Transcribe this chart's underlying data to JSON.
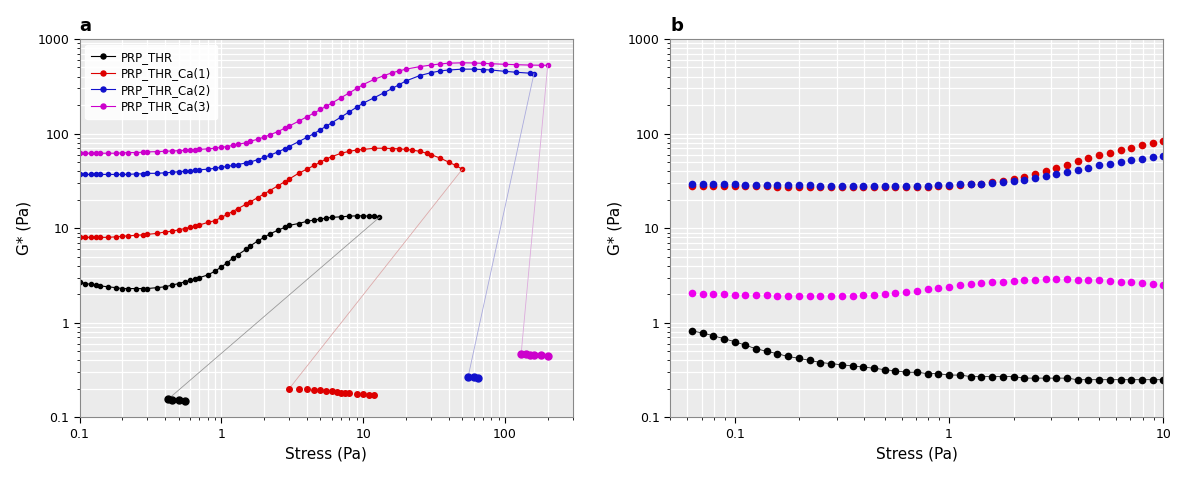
{
  "panel_a": {
    "title": "a",
    "xlabel": "Stress (Pa)",
    "ylabel": "G* (Pa)",
    "xlim": [
      0.1,
      300
    ],
    "ylim": [
      0.1,
      1000
    ],
    "legend_labels": [
      "PRP_THR",
      "PRP_THR_Ca(1)",
      "PRP_THR_Ca(2)",
      "PRP_THR_Ca(3)"
    ],
    "colors": [
      "black",
      "#dd0000",
      "#1111cc",
      "#cc00cc"
    ],
    "line_colors": [
      "#aaaaaa",
      "#ddaaaa",
      "#aaaadd",
      "#ddaadd"
    ],
    "series": {
      "PRP_THR_main": {
        "x": [
          0.1,
          0.11,
          0.12,
          0.13,
          0.14,
          0.16,
          0.18,
          0.2,
          0.22,
          0.25,
          0.28,
          0.3,
          0.35,
          0.4,
          0.45,
          0.5,
          0.55,
          0.6,
          0.65,
          0.7,
          0.8,
          0.9,
          1.0,
          1.1,
          1.2,
          1.3,
          1.5,
          1.6,
          1.8,
          2.0,
          2.2,
          2.5,
          2.8,
          3.0,
          3.5,
          4.0,
          4.5,
          5.0,
          5.5,
          6.0,
          7.0,
          8.0,
          9.0,
          10.0,
          11.0,
          12.0,
          13.0
        ],
        "y": [
          2.7,
          2.6,
          2.55,
          2.5,
          2.45,
          2.4,
          2.35,
          2.3,
          2.3,
          2.3,
          2.3,
          2.3,
          2.35,
          2.4,
          2.5,
          2.6,
          2.7,
          2.8,
          2.9,
          3.0,
          3.2,
          3.5,
          3.9,
          4.3,
          4.8,
          5.2,
          6.0,
          6.5,
          7.3,
          8.0,
          8.7,
          9.5,
          10.2,
          10.7,
          11.2,
          11.8,
          12.2,
          12.5,
          12.8,
          13.0,
          13.2,
          13.4,
          13.5,
          13.5,
          13.4,
          13.3,
          13.0
        ]
      },
      "PRP_THR_drop": {
        "x": [
          13.0,
          0.42
        ],
        "y": [
          13.0,
          0.155
        ]
      },
      "PRP_THR_low": {
        "x": [
          0.42,
          0.45,
          0.5,
          0.55
        ],
        "y": [
          0.155,
          0.153,
          0.152,
          0.15
        ]
      },
      "PRP_THR_Ca1_main": {
        "x": [
          0.1,
          0.11,
          0.12,
          0.13,
          0.14,
          0.16,
          0.18,
          0.2,
          0.22,
          0.25,
          0.28,
          0.3,
          0.35,
          0.4,
          0.45,
          0.5,
          0.55,
          0.6,
          0.65,
          0.7,
          0.8,
          0.9,
          1.0,
          1.1,
          1.2,
          1.3,
          1.5,
          1.6,
          1.8,
          2.0,
          2.2,
          2.5,
          2.8,
          3.0,
          3.5,
          4.0,
          4.5,
          5.0,
          5.5,
          6.0,
          7.0,
          8.0,
          9.0,
          10.0,
          12.0,
          14.0,
          16.0,
          18.0,
          20.0,
          22.0,
          25.0,
          28.0,
          30.0,
          35.0,
          40.0,
          45.0,
          50.0
        ],
        "y": [
          8.0,
          8.0,
          8.0,
          8.0,
          8.0,
          8.0,
          8.1,
          8.2,
          8.3,
          8.4,
          8.5,
          8.6,
          8.8,
          9.1,
          9.3,
          9.6,
          9.9,
          10.2,
          10.5,
          10.8,
          11.5,
          12.0,
          13.0,
          14.0,
          15.0,
          16.0,
          18.0,
          19.0,
          21.0,
          23.0,
          25.0,
          28.0,
          31.0,
          33.0,
          38.0,
          42.0,
          46.0,
          50.0,
          54.0,
          57.0,
          62.0,
          65.0,
          67.0,
          68.0,
          70.0,
          70.0,
          69.5,
          69.0,
          68.0,
          67.0,
          65.0,
          62.0,
          60.0,
          55.0,
          50.0,
          46.0,
          42.0
        ]
      },
      "PRP_THR_Ca1_drop": {
        "x": [
          50.0,
          3.0
        ],
        "y": [
          42.0,
          0.2
        ]
      },
      "PRP_THR_Ca1_low": {
        "x": [
          3.0,
          3.5,
          4.0,
          4.5,
          5.0,
          5.5,
          6.0,
          6.5,
          7.0,
          7.5,
          8.0,
          9.0,
          10.0,
          11.0,
          12.0
        ],
        "y": [
          0.2,
          0.2,
          0.198,
          0.196,
          0.193,
          0.19,
          0.188,
          0.185,
          0.183,
          0.182,
          0.18,
          0.178,
          0.176,
          0.174,
          0.173
        ]
      },
      "PRP_THR_Ca2_main": {
        "x": [
          0.1,
          0.11,
          0.12,
          0.13,
          0.14,
          0.16,
          0.18,
          0.2,
          0.22,
          0.25,
          0.28,
          0.3,
          0.35,
          0.4,
          0.45,
          0.5,
          0.55,
          0.6,
          0.65,
          0.7,
          0.8,
          0.9,
          1.0,
          1.1,
          1.2,
          1.3,
          1.5,
          1.6,
          1.8,
          2.0,
          2.2,
          2.5,
          2.8,
          3.0,
          3.5,
          4.0,
          4.5,
          5.0,
          5.5,
          6.0,
          7.0,
          8.0,
          9.0,
          10.0,
          12.0,
          14.0,
          16.0,
          18.0,
          20.0,
          25.0,
          30.0,
          35.0,
          40.0,
          50.0,
          60.0,
          70.0,
          80.0,
          100.0,
          120.0,
          150.0,
          160.0
        ],
        "y": [
          37.0,
          37.0,
          37.0,
          37.0,
          37.0,
          37.0,
          37.0,
          37.0,
          37.0,
          37.5,
          37.5,
          38.0,
          38.0,
          38.5,
          39.0,
          39.5,
          40.0,
          40.5,
          41.0,
          41.5,
          42.0,
          43.0,
          44.0,
          45.0,
          46.0,
          47.0,
          49.0,
          50.0,
          53.0,
          56.0,
          59.0,
          64.0,
          69.0,
          73.0,
          82.0,
          91.0,
          100.0,
          110.0,
          120.0,
          130.0,
          150.0,
          170.0,
          190.0,
          210.0,
          240.0,
          270.0,
          300.0,
          330.0,
          360.0,
          410.0,
          440.0,
          460.0,
          470.0,
          480.0,
          480.0,
          475.0,
          470.0,
          455.0,
          445.0,
          435.0,
          430.0
        ]
      },
      "PRP_THR_Ca2_drop": {
        "x": [
          160.0,
          55.0
        ],
        "y": [
          430.0,
          0.27
        ]
      },
      "PRP_THR_Ca2_low": {
        "x": [
          55.0,
          60.0,
          65.0
        ],
        "y": [
          0.27,
          0.265,
          0.26
        ]
      },
      "PRP_THR_Ca3_main": {
        "x": [
          0.1,
          0.11,
          0.12,
          0.13,
          0.14,
          0.16,
          0.18,
          0.2,
          0.22,
          0.25,
          0.28,
          0.3,
          0.35,
          0.4,
          0.45,
          0.5,
          0.55,
          0.6,
          0.65,
          0.7,
          0.8,
          0.9,
          1.0,
          1.1,
          1.2,
          1.3,
          1.5,
          1.6,
          1.8,
          2.0,
          2.2,
          2.5,
          2.8,
          3.0,
          3.5,
          4.0,
          4.5,
          5.0,
          5.5,
          6.0,
          7.0,
          8.0,
          9.0,
          10.0,
          12.0,
          14.0,
          16.0,
          18.0,
          20.0,
          25.0,
          30.0,
          35.0,
          40.0,
          50.0,
          60.0,
          70.0,
          80.0,
          100.0,
          120.0,
          150.0,
          180.0,
          200.0
        ],
        "y": [
          62.0,
          62.0,
          62.0,
          62.0,
          62.0,
          62.0,
          62.0,
          62.5,
          63.0,
          63.0,
          63.5,
          64.0,
          64.5,
          65.0,
          65.5,
          66.0,
          66.5,
          67.0,
          67.5,
          68.0,
          69.0,
          70.0,
          71.5,
          73.0,
          75.0,
          77.0,
          80.0,
          83.0,
          87.0,
          92.0,
          97.0,
          105.0,
          114.0,
          120.0,
          135.0,
          150.0,
          165.0,
          180.0,
          195.0,
          210.0,
          240.0,
          270.0,
          300.0,
          330.0,
          375.0,
          410.0,
          440.0,
          460.0,
          480.0,
          510.0,
          530.0,
          545.0,
          555.0,
          560.0,
          558.0,
          553.0,
          548.0,
          540.0,
          535.0,
          530.0,
          528.0,
          527.0
        ]
      },
      "PRP_THR_Ca3_drop": {
        "x": [
          200.0,
          130.0
        ],
        "y": [
          527.0,
          0.47
        ]
      },
      "PRP_THR_Ca3_low": {
        "x": [
          130.0,
          140.0,
          150.0,
          160.0,
          180.0,
          200.0
        ],
        "y": [
          0.47,
          0.47,
          0.46,
          0.46,
          0.46,
          0.45
        ]
      }
    }
  },
  "panel_b": {
    "title": "b",
    "xlabel": "Stress (Pa)",
    "ylabel": "G* (Pa)",
    "xlim": [
      0.05,
      10
    ],
    "ylim": [
      0.1,
      1000
    ],
    "series": {
      "PRP_THR": {
        "color": "black",
        "x": [
          0.063,
          0.071,
          0.079,
          0.089,
          0.1,
          0.112,
          0.126,
          0.141,
          0.158,
          0.178,
          0.2,
          0.224,
          0.251,
          0.282,
          0.316,
          0.355,
          0.398,
          0.447,
          0.5,
          0.562,
          0.631,
          0.708,
          0.794,
          0.891,
          1.0,
          1.122,
          1.259,
          1.413,
          1.585,
          1.778,
          2.0,
          2.239,
          2.512,
          2.818,
          3.162,
          3.548,
          3.981,
          4.467,
          5.012,
          5.623,
          6.31,
          7.079,
          7.943,
          8.913,
          10.0
        ],
        "y": [
          0.82,
          0.78,
          0.73,
          0.68,
          0.63,
          0.58,
          0.53,
          0.5,
          0.47,
          0.44,
          0.42,
          0.4,
          0.38,
          0.37,
          0.36,
          0.35,
          0.34,
          0.33,
          0.32,
          0.31,
          0.3,
          0.3,
          0.29,
          0.29,
          0.28,
          0.28,
          0.27,
          0.27,
          0.27,
          0.27,
          0.27,
          0.26,
          0.26,
          0.26,
          0.26,
          0.26,
          0.25,
          0.25,
          0.25,
          0.25,
          0.25,
          0.25,
          0.25,
          0.25,
          0.25
        ]
      },
      "PRP_THR_Ca1": {
        "color": "#dd0000",
        "x": [
          0.063,
          0.071,
          0.079,
          0.089,
          0.1,
          0.112,
          0.126,
          0.141,
          0.158,
          0.178,
          0.2,
          0.224,
          0.251,
          0.282,
          0.316,
          0.355,
          0.398,
          0.447,
          0.5,
          0.562,
          0.631,
          0.708,
          0.794,
          0.891,
          1.0,
          1.122,
          1.259,
          1.413,
          1.585,
          1.778,
          2.0,
          2.239,
          2.512,
          2.818,
          3.162,
          3.548,
          3.981,
          4.467,
          5.012,
          5.623,
          6.31,
          7.079,
          7.943,
          8.913,
          10.0
        ],
        "y": [
          28.0,
          28.0,
          28.0,
          28.0,
          28.0,
          28.0,
          28.0,
          28.0,
          27.5,
          27.5,
          27.5,
          27.5,
          27.5,
          27.5,
          27.0,
          27.0,
          27.0,
          27.0,
          27.0,
          27.0,
          27.0,
          27.5,
          27.5,
          28.0,
          28.0,
          28.5,
          29.0,
          29.5,
          30.5,
          31.5,
          33.0,
          35.0,
          37.5,
          40.0,
          43.0,
          47.0,
          51.0,
          55.0,
          59.0,
          63.0,
          67.0,
          71.0,
          75.0,
          79.0,
          83.0
        ]
      },
      "PRP_THR_Ca2": {
        "color": "#1111cc",
        "x": [
          0.063,
          0.071,
          0.079,
          0.089,
          0.1,
          0.112,
          0.126,
          0.141,
          0.158,
          0.178,
          0.2,
          0.224,
          0.251,
          0.282,
          0.316,
          0.355,
          0.398,
          0.447,
          0.5,
          0.562,
          0.631,
          0.708,
          0.794,
          0.891,
          1.0,
          1.122,
          1.259,
          1.413,
          1.585,
          1.778,
          2.0,
          2.239,
          2.512,
          2.818,
          3.162,
          3.548,
          3.981,
          4.467,
          5.012,
          5.623,
          6.31,
          7.079,
          7.943,
          8.913,
          10.0
        ],
        "y": [
          29.0,
          29.0,
          29.0,
          29.0,
          29.0,
          28.5,
          28.5,
          28.5,
          28.5,
          28.5,
          28.5,
          28.5,
          28.0,
          28.0,
          28.0,
          28.0,
          28.0,
          28.0,
          28.0,
          28.0,
          28.0,
          28.0,
          28.0,
          28.5,
          28.5,
          29.0,
          29.0,
          29.5,
          30.0,
          30.5,
          31.5,
          32.5,
          34.0,
          35.5,
          37.5,
          39.5,
          41.5,
          43.5,
          46.0,
          48.0,
          50.0,
          52.0,
          54.0,
          56.0,
          58.0
        ]
      },
      "PRP_THR_Ca3": {
        "color": "#ee00ee",
        "x": [
          0.063,
          0.071,
          0.079,
          0.089,
          0.1,
          0.112,
          0.126,
          0.141,
          0.158,
          0.178,
          0.2,
          0.224,
          0.251,
          0.282,
          0.316,
          0.355,
          0.398,
          0.447,
          0.5,
          0.562,
          0.631,
          0.708,
          0.794,
          0.891,
          1.0,
          1.122,
          1.259,
          1.413,
          1.585,
          1.778,
          2.0,
          2.239,
          2.512,
          2.818,
          3.162,
          3.548,
          3.981,
          4.467,
          5.012,
          5.623,
          6.31,
          7.079,
          7.943,
          8.913,
          10.0
        ],
        "y": [
          2.05,
          2.03,
          2.02,
          2.0,
          1.98,
          1.97,
          1.96,
          1.95,
          1.94,
          1.93,
          1.93,
          1.93,
          1.93,
          1.93,
          1.93,
          1.93,
          1.95,
          1.97,
          2.0,
          2.05,
          2.1,
          2.18,
          2.25,
          2.33,
          2.4,
          2.48,
          2.55,
          2.62,
          2.68,
          2.73,
          2.78,
          2.82,
          2.85,
          2.87,
          2.88,
          2.87,
          2.85,
          2.83,
          2.8,
          2.77,
          2.73,
          2.68,
          2.62,
          2.55,
          2.48
        ]
      }
    }
  },
  "background_color": "#ebebeb",
  "grid_color": "white"
}
